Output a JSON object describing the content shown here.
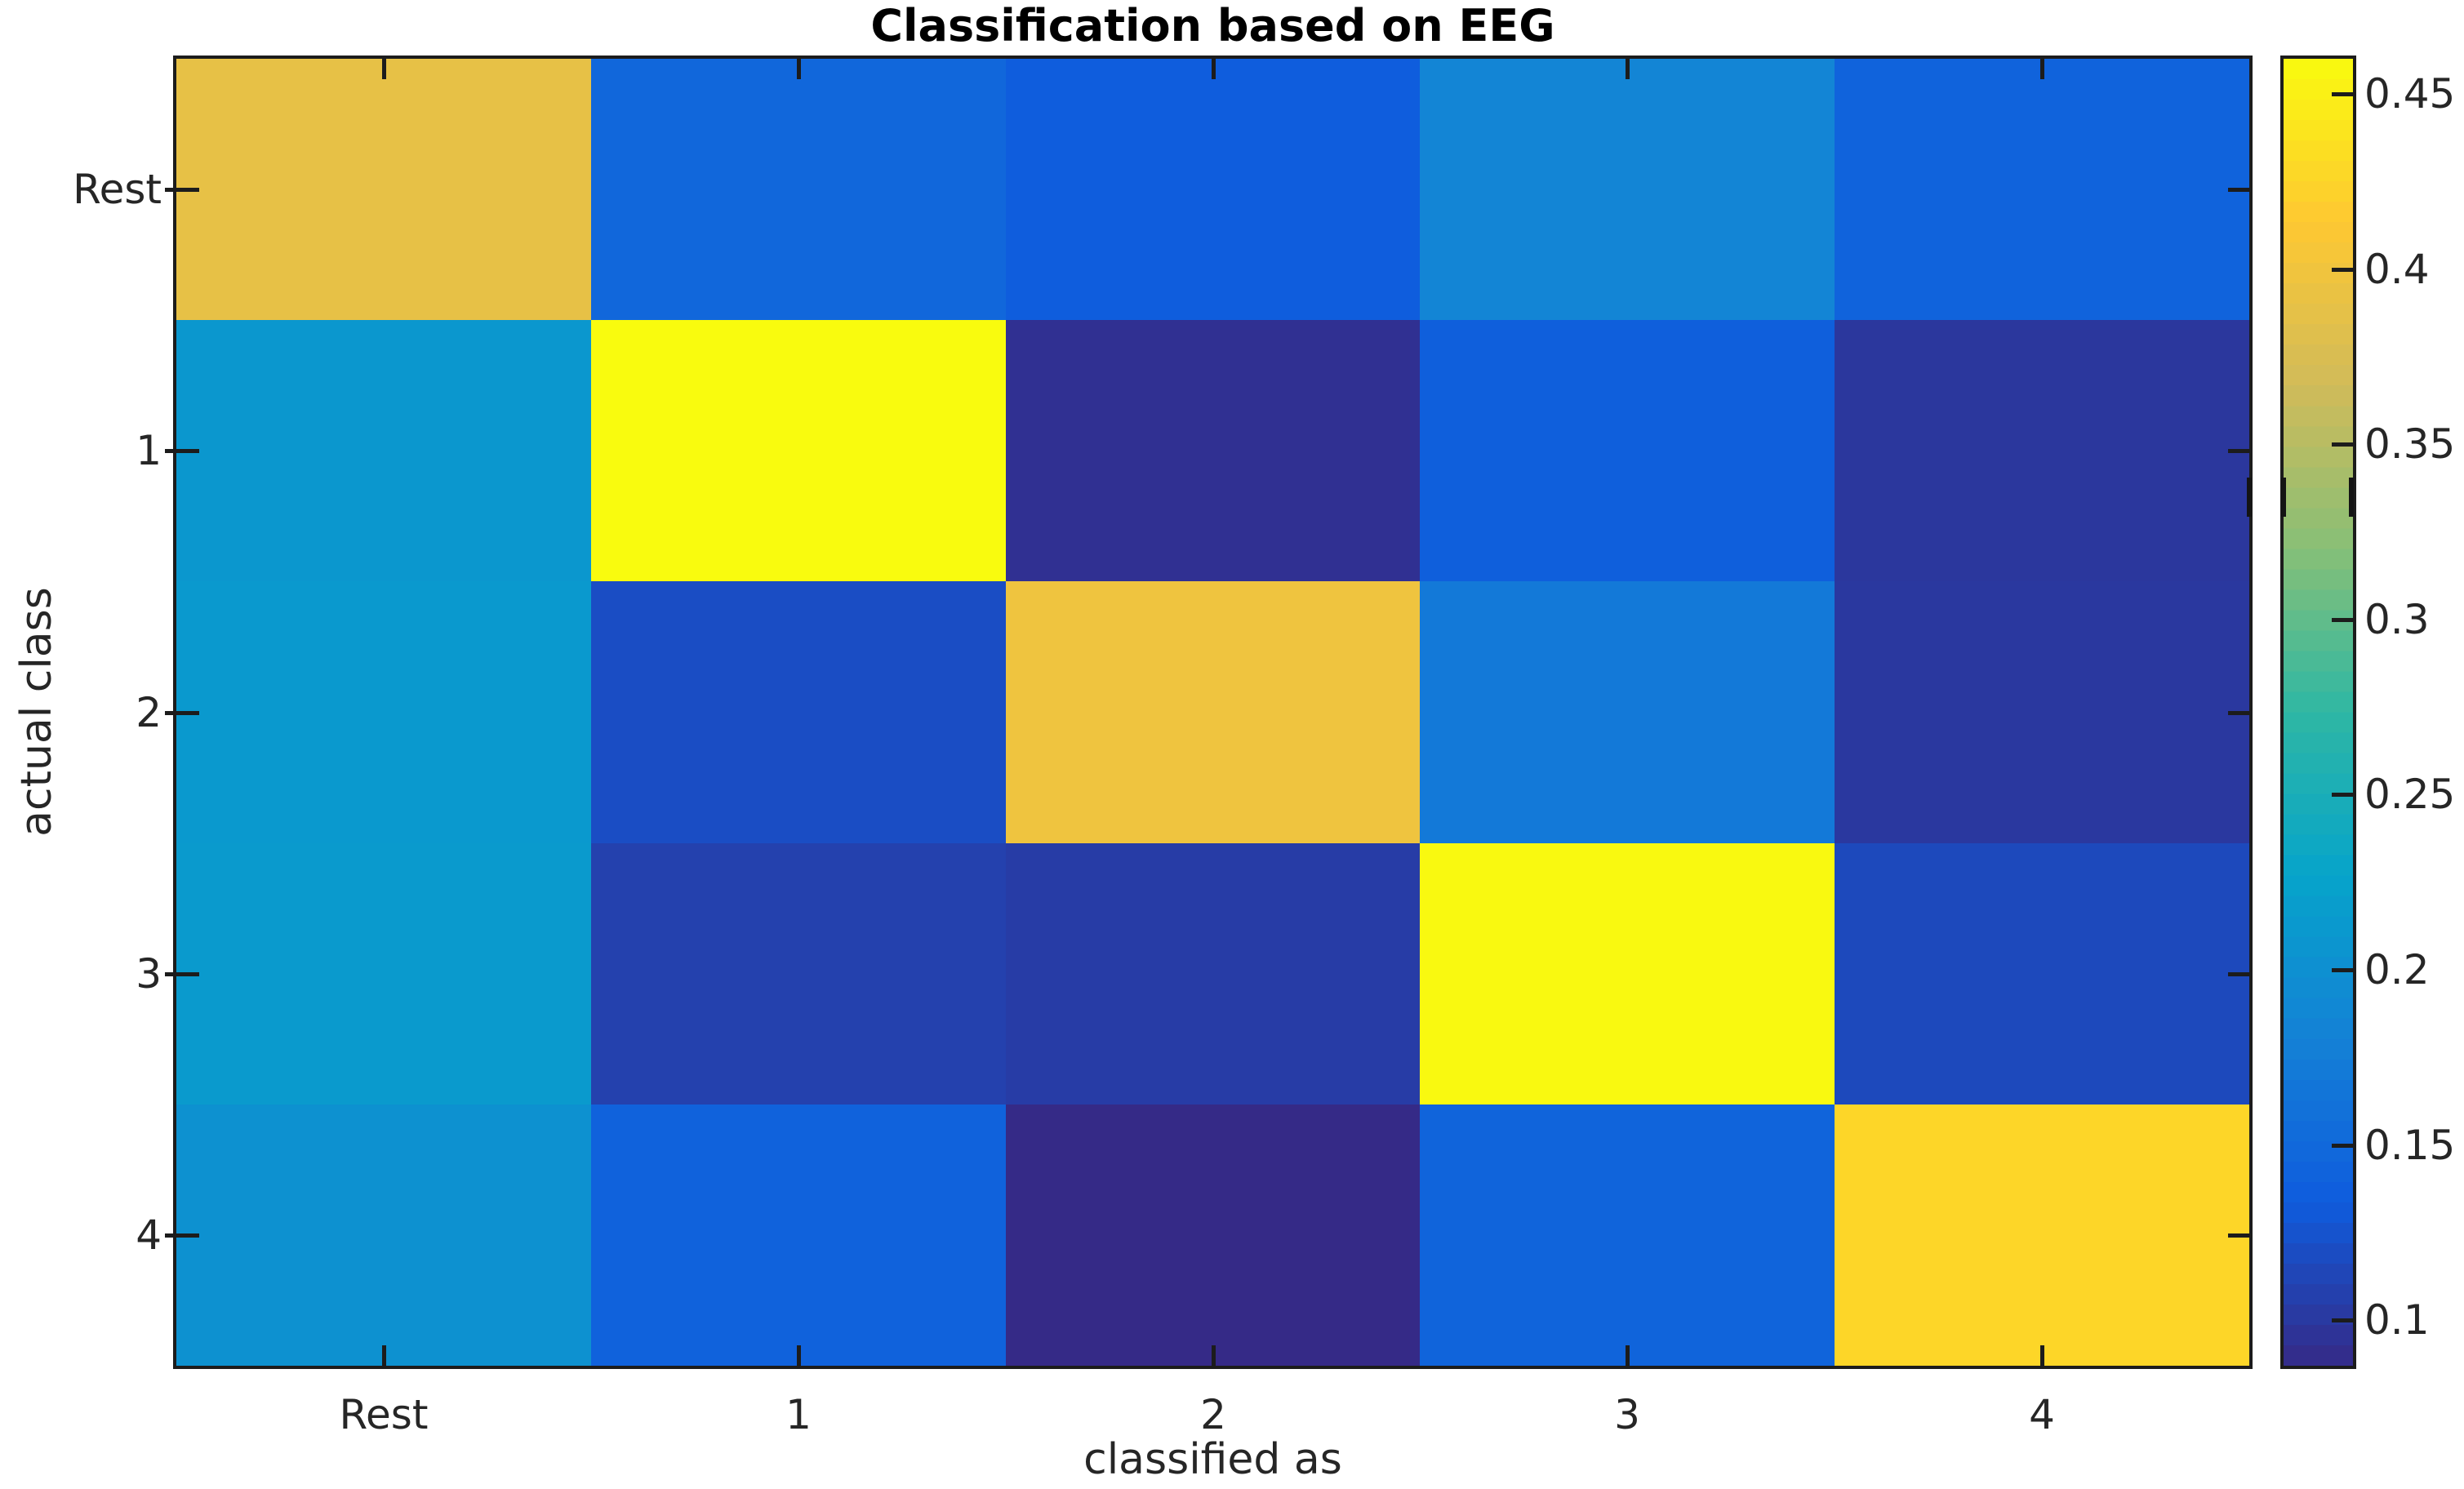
{
  "chart_data": {
    "type": "heatmap",
    "title": "Classification based on EEG",
    "xlabel": "classified as",
    "ylabel": "actual class",
    "x_categories": [
      "Rest",
      "1",
      "2",
      "3",
      "4"
    ],
    "y_categories": [
      "Rest",
      "1",
      "2",
      "3",
      "4"
    ],
    "values": [
      [
        0.39,
        0.148,
        0.135,
        0.185,
        0.142
      ],
      [
        0.21,
        0.46,
        0.093,
        0.138,
        0.099
      ],
      [
        0.212,
        0.12,
        0.398,
        0.17,
        0.1
      ],
      [
        0.214,
        0.108,
        0.104,
        0.458,
        0.116
      ],
      [
        0.202,
        0.141,
        0.087,
        0.144,
        0.426
      ]
    ],
    "color_axis": {
      "min": 0.087,
      "max": 0.46
    },
    "grid": false,
    "legend": false,
    "colorbar": {
      "position": "right",
      "tick_values": [
        0.45,
        0.4,
        0.35,
        0.3,
        0.25,
        0.2,
        0.15,
        0.1
      ],
      "tick_labels": [
        "0.45",
        "0.4",
        "0.35",
        "0.3",
        "0.25",
        "0.2",
        "0.15",
        "0.1"
      ]
    },
    "colormap": {
      "name": "parula",
      "anchors": [
        {
          "f": 0.0,
          "color": "#352a87"
        },
        {
          "f": 0.125,
          "color": "#0f5cdd"
        },
        {
          "f": 0.25,
          "color": "#1481d6"
        },
        {
          "f": 0.375,
          "color": "#06a4ca"
        },
        {
          "f": 0.5,
          "color": "#2eb7a4"
        },
        {
          "f": 0.625,
          "color": "#87bf77"
        },
        {
          "f": 0.75,
          "color": "#d1bb59"
        },
        {
          "f": 0.875,
          "color": "#fec832"
        },
        {
          "f": 1.0,
          "color": "#f9fb0e"
        }
      ]
    }
  },
  "colors": {
    "background": "#ffffff",
    "axis_line": "#1c1c1c",
    "tick_text": "#262626",
    "title_text": "#000000"
  }
}
